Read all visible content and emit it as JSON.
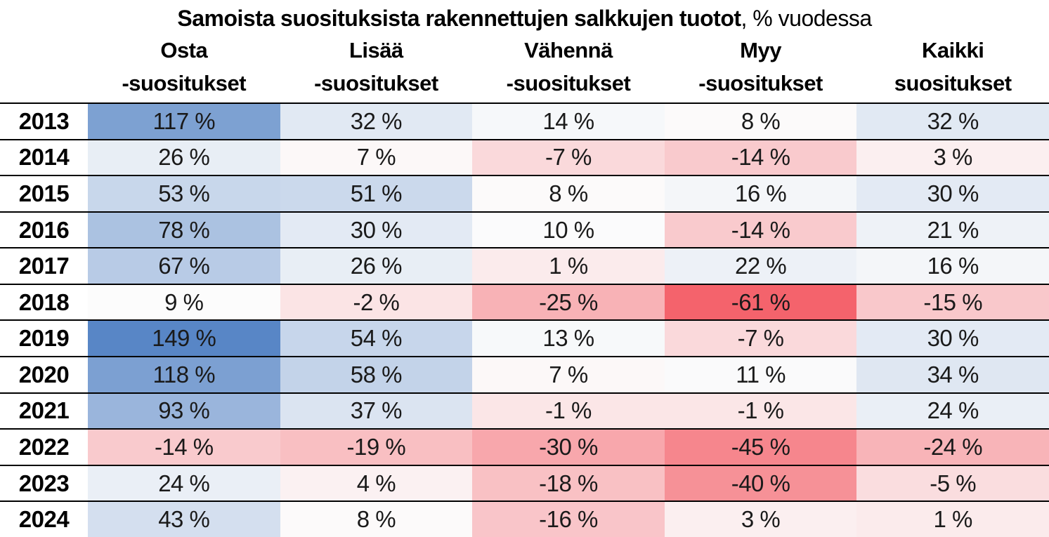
{
  "title": {
    "bold": "Samoista suosituksista rakennettujen salkkujen tuotot",
    "regular": ", % vuodessa"
  },
  "chart_data": {
    "type": "heatmap",
    "title": "Samoista suosituksista rakennettujen salkkujen tuotot, % vuodessa",
    "value_suffix": " %",
    "columns": [
      {
        "line1": "Osta",
        "line2": "-suositukset",
        "slug": "osta"
      },
      {
        "line1": "Lisää",
        "line2": "-suositukset",
        "slug": "lisaa"
      },
      {
        "line1": "Vähennä",
        "line2": "-suositukset",
        "slug": "vahenna"
      },
      {
        "line1": "Myy",
        "line2": "-suositukset",
        "slug": "myy"
      },
      {
        "line1": "Kaikki",
        "line2": "suositukset",
        "slug": "kaikki"
      }
    ],
    "years": [
      "2013",
      "2014",
      "2015",
      "2016",
      "2017",
      "2018",
      "2019",
      "2020",
      "2021",
      "2022",
      "2023",
      "2024"
    ],
    "values": [
      [
        117,
        32,
        14,
        8,
        32
      ],
      [
        26,
        7,
        -7,
        -14,
        3
      ],
      [
        53,
        51,
        8,
        16,
        30
      ],
      [
        78,
        30,
        10,
        -14,
        21
      ],
      [
        67,
        26,
        1,
        22,
        16
      ],
      [
        9,
        -2,
        -25,
        -61,
        -15
      ],
      [
        149,
        54,
        13,
        -7,
        30
      ],
      [
        118,
        58,
        7,
        11,
        34
      ],
      [
        93,
        37,
        -1,
        -1,
        24
      ],
      [
        -14,
        -19,
        -30,
        -45,
        -24
      ],
      [
        24,
        4,
        -18,
        -40,
        -5
      ],
      [
        43,
        8,
        -16,
        3,
        1
      ]
    ],
    "color_scale": {
      "min": -61,
      "mid": 9,
      "max": 149,
      "min_color": "#F4636C",
      "mid_color": "#FCFCFC",
      "max_color": "#5886C6"
    },
    "row_border_color": "#000000",
    "text_color": "#1a1a1a"
  }
}
